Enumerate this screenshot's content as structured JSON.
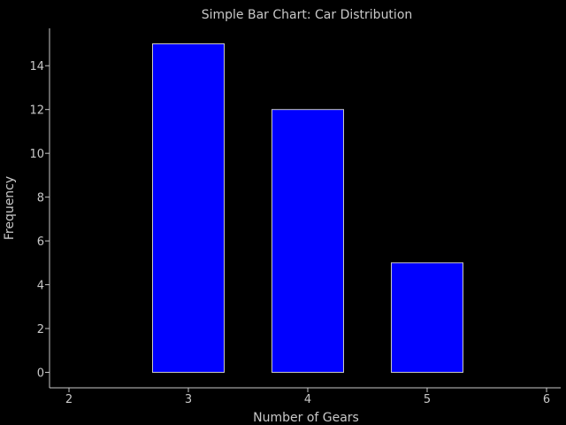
{
  "chart_data": {
    "type": "bar",
    "title": "Simple Bar Chart: Car Distribution",
    "xlabel": "Number of Gears",
    "ylabel": "Frequency",
    "categories": [
      3,
      4,
      5
    ],
    "values": [
      15,
      12,
      5
    ],
    "xlim": [
      2,
      6
    ],
    "ylim": [
      0,
      15
    ],
    "x_ticks": [
      2,
      3,
      4,
      5,
      6
    ],
    "y_ticks": [
      0,
      2,
      4,
      6,
      8,
      10,
      12,
      14
    ],
    "grid": false,
    "legend": "none",
    "bar_width": 0.6,
    "colors": {
      "background": "#000000",
      "bar_fill": "#0000ff",
      "bar_edge": "#c8c8c8",
      "axis": "#c8c8c8",
      "text": "#c8c8c8"
    }
  }
}
